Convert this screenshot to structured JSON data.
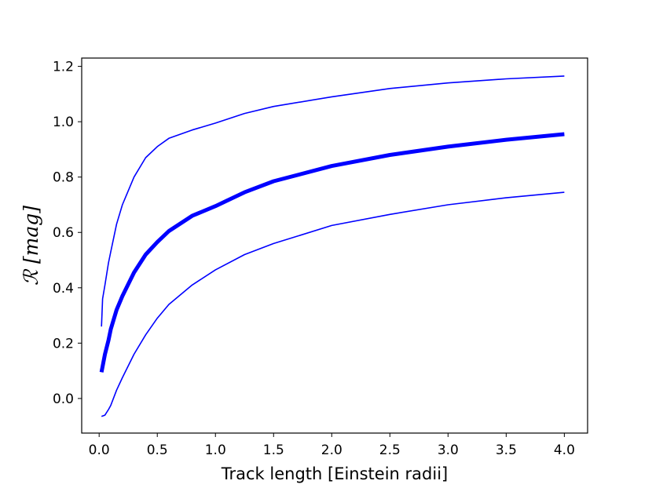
{
  "chart_data": {
    "type": "line",
    "xlabel": "Track length [Einstein radii]",
    "ylabel": "ℛ [mag]",
    "xlim": [
      -0.15,
      4.2
    ],
    "ylim": [
      -0.125,
      1.23
    ],
    "xticks": [
      "0.0",
      "0.5",
      "1.0",
      "1.5",
      "2.0",
      "2.5",
      "3.0",
      "3.5",
      "4.0"
    ],
    "yticks": [
      "0.0",
      "0.2",
      "0.4",
      "0.6",
      "0.8",
      "1.0",
      "1.2"
    ],
    "grid": false,
    "legend": "none",
    "line_color": "#0000ff",
    "series": [
      {
        "style": "thin",
        "x": [
          0.02,
          0.03,
          0.05,
          0.08,
          0.1,
          0.15,
          0.2,
          0.3,
          0.4,
          0.5,
          0.6,
          0.8,
          1.0,
          1.25,
          1.5,
          2.0,
          2.5,
          3.0,
          3.5,
          4.0
        ],
        "y": [
          0.26,
          0.36,
          0.41,
          0.49,
          0.53,
          0.63,
          0.7,
          0.8,
          0.87,
          0.91,
          0.94,
          0.97,
          0.995,
          1.03,
          1.055,
          1.09,
          1.12,
          1.14,
          1.155,
          1.165
        ]
      },
      {
        "style": "thick",
        "x": [
          0.02,
          0.05,
          0.08,
          0.1,
          0.15,
          0.2,
          0.3,
          0.4,
          0.5,
          0.6,
          0.8,
          1.0,
          1.25,
          1.5,
          2.0,
          2.5,
          3.0,
          3.5,
          4.0
        ],
        "y": [
          0.095,
          0.16,
          0.21,
          0.25,
          0.32,
          0.37,
          0.455,
          0.52,
          0.565,
          0.605,
          0.66,
          0.695,
          0.745,
          0.785,
          0.84,
          0.88,
          0.91,
          0.935,
          0.955
        ]
      },
      {
        "style": "thin",
        "x": [
          0.02,
          0.05,
          0.08,
          0.1,
          0.15,
          0.2,
          0.3,
          0.4,
          0.5,
          0.6,
          0.8,
          1.0,
          1.25,
          1.5,
          2.0,
          2.5,
          3.0,
          3.5,
          4.0
        ],
        "y": [
          -0.065,
          -0.06,
          -0.04,
          -0.025,
          0.03,
          0.075,
          0.16,
          0.23,
          0.29,
          0.34,
          0.41,
          0.465,
          0.52,
          0.56,
          0.625,
          0.665,
          0.7,
          0.725,
          0.745
        ]
      }
    ]
  }
}
